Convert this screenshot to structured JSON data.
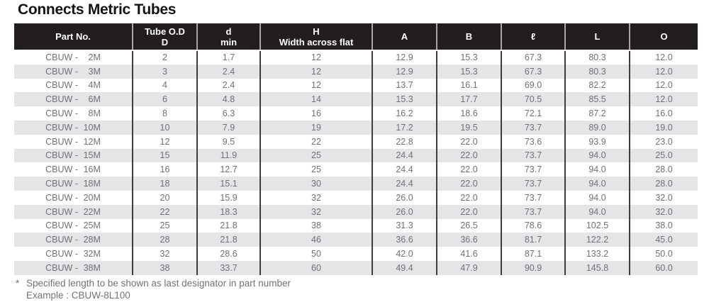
{
  "title": "Connects Metric Tubes",
  "table": {
    "headers": [
      {
        "line1": "Part No.",
        "line2": ""
      },
      {
        "line1": "Tube O.D",
        "line2": "D"
      },
      {
        "line1": "d",
        "line2": "min"
      },
      {
        "line1": "H",
        "line2": "Width across flat"
      },
      {
        "line1": "A",
        "line2": ""
      },
      {
        "line1": "B",
        "line2": ""
      },
      {
        "line1": "ℓ",
        "line2": ""
      },
      {
        "line1": "L",
        "line2": ""
      },
      {
        "line1": "O",
        "line2": ""
      }
    ],
    "rows": [
      {
        "part_prefix": "CBUW -",
        "part_size": "2M",
        "values": [
          "2",
          "1.7",
          "12",
          "12.9",
          "15.3",
          "67.3",
          "80.3",
          "12.0"
        ]
      },
      {
        "part_prefix": "CBUW -",
        "part_size": "3M",
        "values": [
          "3",
          "2.4",
          "12",
          "12.9",
          "15.3",
          "67.3",
          "80.3",
          "12.0"
        ]
      },
      {
        "part_prefix": "CBUW -",
        "part_size": "4M",
        "values": [
          "4",
          "2.4",
          "12",
          "13.7",
          "16.1",
          "69.0",
          "82.2",
          "12.0"
        ]
      },
      {
        "part_prefix": "CBUW -",
        "part_size": "6M",
        "values": [
          "6",
          "4.8",
          "14",
          "15.3",
          "17.7",
          "70.5",
          "85.5",
          "12.0"
        ]
      },
      {
        "part_prefix": "CBUW -",
        "part_size": "8M",
        "values": [
          "8",
          "6.3",
          "16",
          "16.2",
          "18.6",
          "72.1",
          "87.2",
          "16.0"
        ]
      },
      {
        "part_prefix": "CBUW -",
        "part_size": "10M",
        "values": [
          "10",
          "7.9",
          "19",
          "17.2",
          "19.5",
          "73.7",
          "89.0",
          "19.0"
        ]
      },
      {
        "part_prefix": "CBUW -",
        "part_size": "12M",
        "values": [
          "12",
          "9.5",
          "22",
          "22.8",
          "22.0",
          "73.6",
          "93.9",
          "23.0"
        ]
      },
      {
        "part_prefix": "CBUW -",
        "part_size": "15M",
        "values": [
          "15",
          "11.9",
          "25",
          "24.4",
          "22.0",
          "73.7",
          "94.0",
          "25.0"
        ]
      },
      {
        "part_prefix": "CBUW -",
        "part_size": "16M",
        "values": [
          "16",
          "12.7",
          "25",
          "24.4",
          "22.0",
          "73.7",
          "94.0",
          "28.0"
        ]
      },
      {
        "part_prefix": "CBUW -",
        "part_size": "18M",
        "values": [
          "18",
          "15.1",
          "30",
          "24.4",
          "22.0",
          "73.7",
          "94.0",
          "28.0"
        ]
      },
      {
        "part_prefix": "CBUW -",
        "part_size": "20M",
        "values": [
          "20",
          "15.9",
          "32",
          "26.0",
          "22.0",
          "73.7",
          "94.0",
          "32.0"
        ]
      },
      {
        "part_prefix": "CBUW -",
        "part_size": "22M",
        "values": [
          "22",
          "18.3",
          "32",
          "26.0",
          "22.0",
          "73.7",
          "94.0",
          "32.0"
        ]
      },
      {
        "part_prefix": "CBUW -",
        "part_size": "25M",
        "values": [
          "25",
          "21.8",
          "38",
          "31.3",
          "26.5",
          "78.6",
          "102.5",
          "38.0"
        ]
      },
      {
        "part_prefix": "CBUW -",
        "part_size": "28M",
        "values": [
          "28",
          "21.8",
          "46",
          "36.6",
          "36.6",
          "81.7",
          "122.2",
          "45.0"
        ]
      },
      {
        "part_prefix": "CBUW -",
        "part_size": "32M",
        "values": [
          "32",
          "28.6",
          "50",
          "42.0",
          "41.6",
          "87.1",
          "133.2",
          "50.0"
        ]
      },
      {
        "part_prefix": "CBUW -",
        "part_size": "38M",
        "values": [
          "38",
          "33.7",
          "60",
          "49.4",
          "47.9",
          "90.9",
          "145.8",
          "60.0"
        ]
      }
    ]
  },
  "footnote": {
    "marker": "*",
    "line1": "Specified length to be shown as last designator in part number",
    "line2": "Example : CBUW-8L100"
  },
  "colors": {
    "header_bg": "#221e1f",
    "header_text": "#ffffff",
    "stripe": "#e4e5e7",
    "data_text": "#707175",
    "column_border": "#3c3c3c"
  }
}
